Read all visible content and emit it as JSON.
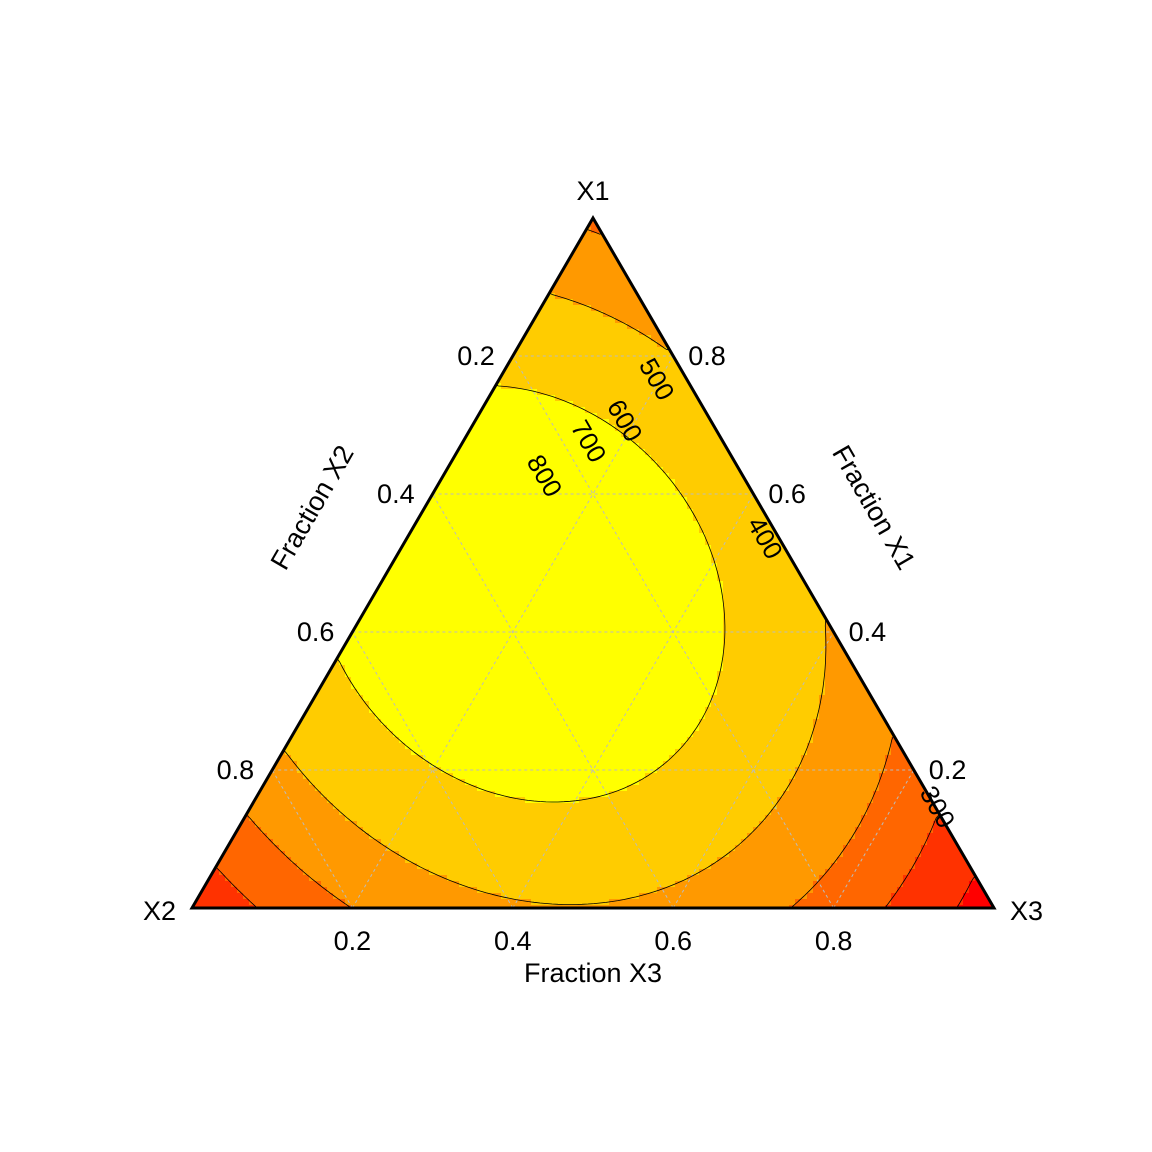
{
  "chart_data": {
    "type": "ternary-contour",
    "corners": {
      "top": "X1",
      "left": "X2",
      "right": "X3"
    },
    "axis_titles": {
      "left": "Fraction X2",
      "right": "Fraction X1",
      "bottom": "Fraction X3"
    },
    "ticks": [
      0.2,
      0.4,
      0.6,
      0.8
    ],
    "tick_labels": [
      "0.2",
      "0.4",
      "0.6",
      "0.8"
    ],
    "grid": true,
    "contour_levels": [
      300,
      400,
      500,
      600,
      700,
      800
    ],
    "contour_labels": [
      {
        "level": 800,
        "text": "800",
        "x1": 0.62,
        "x2": 0.26,
        "x3": 0.12
      },
      {
        "level": 700,
        "text": "700",
        "x1": 0.67,
        "x2": 0.18,
        "x3": 0.15
      },
      {
        "level": 600,
        "text": "600",
        "x1": 0.7,
        "x2": 0.12,
        "x3": 0.18
      },
      {
        "level": 500,
        "text": "500",
        "x1": 0.76,
        "x2": 0.05,
        "x3": 0.19
      },
      {
        "level": 400,
        "text": "400",
        "x1": 0.53,
        "x2": 0.03,
        "x3": 0.44
      },
      {
        "level": 300,
        "text": "300",
        "x1": 0.14,
        "x2": 0.01,
        "x3": 0.85
      }
    ],
    "fill_colors": [
      "#FF0000",
      "#FF3200",
      "#FF6600",
      "#FF9900",
      "#FFCC00",
      "#FFFF00",
      "#FFFF80"
    ],
    "region_ranges": [
      "<300",
      "300-400",
      "400-500",
      "500-600",
      "600-700",
      "700-800",
      ">800"
    ]
  }
}
